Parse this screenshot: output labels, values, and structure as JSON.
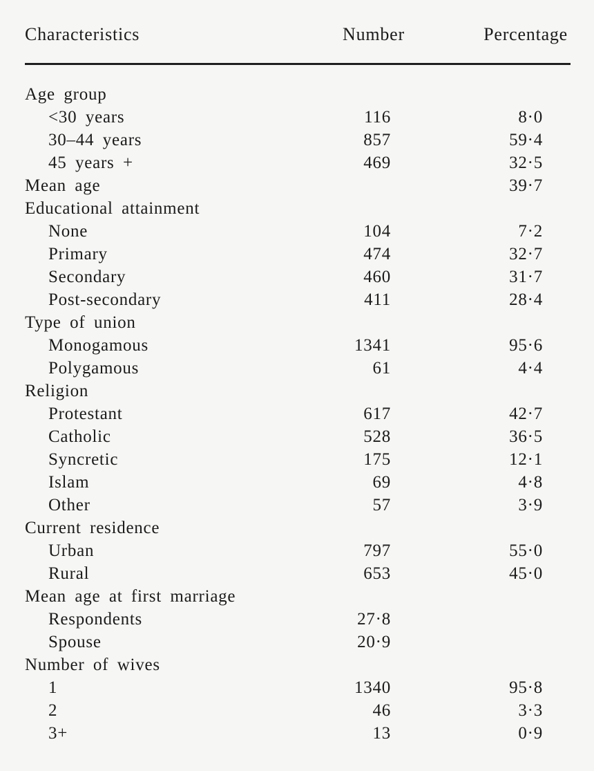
{
  "table": {
    "columns": {
      "characteristics": "Characteristics",
      "number": "Number",
      "percentage": "Percentage"
    },
    "rows": [
      {
        "label": "Age group",
        "indent": 0,
        "number": "",
        "percentage": ""
      },
      {
        "label": "<30 years",
        "indent": 1,
        "number": "116",
        "percentage": "8·0"
      },
      {
        "label": "30–44 years",
        "indent": 1,
        "number": "857",
        "percentage": "59·4"
      },
      {
        "label": "45 years +",
        "indent": 1,
        "number": "469",
        "percentage": "32·5"
      },
      {
        "label": "Mean age",
        "indent": 0,
        "number": "",
        "percentage": "39·7"
      },
      {
        "label": "Educational attainment",
        "indent": 0,
        "number": "",
        "percentage": ""
      },
      {
        "label": "None",
        "indent": 1,
        "number": "104",
        "percentage": "7·2"
      },
      {
        "label": "Primary",
        "indent": 1,
        "number": "474",
        "percentage": "32·7"
      },
      {
        "label": "Secondary",
        "indent": 1,
        "number": "460",
        "percentage": "31·7"
      },
      {
        "label": "Post-secondary",
        "indent": 1,
        "number": "411",
        "percentage": "28·4"
      },
      {
        "label": "Type of union",
        "indent": 0,
        "number": "",
        "percentage": ""
      },
      {
        "label": "Monogamous",
        "indent": 1,
        "number": "1341",
        "percentage": "95·6"
      },
      {
        "label": "Polygamous",
        "indent": 1,
        "number": "61",
        "percentage": "4·4"
      },
      {
        "label": "Religion",
        "indent": 0,
        "number": "",
        "percentage": ""
      },
      {
        "label": "Protestant",
        "indent": 1,
        "number": "617",
        "percentage": "42·7"
      },
      {
        "label": "Catholic",
        "indent": 1,
        "number": "528",
        "percentage": "36·5"
      },
      {
        "label": "Syncretic",
        "indent": 1,
        "number": "175",
        "percentage": "12·1"
      },
      {
        "label": "Islam",
        "indent": 1,
        "number": "69",
        "percentage": "4·8"
      },
      {
        "label": "Other",
        "indent": 1,
        "number": "57",
        "percentage": "3·9"
      },
      {
        "label": "Current residence",
        "indent": 0,
        "number": "",
        "percentage": ""
      },
      {
        "label": "Urban",
        "indent": 1,
        "number": "797",
        "percentage": "55·0"
      },
      {
        "label": "Rural",
        "indent": 1,
        "number": "653",
        "percentage": "45·0"
      },
      {
        "label": "Mean age at first marriage",
        "indent": 0,
        "number": "",
        "percentage": ""
      },
      {
        "label": "Respondents",
        "indent": 1,
        "number": "27·8",
        "percentage": ""
      },
      {
        "label": "Spouse",
        "indent": 1,
        "number": "20·9",
        "percentage": ""
      },
      {
        "label": "Number of wives",
        "indent": 0,
        "number": "",
        "percentage": ""
      },
      {
        "label": "1",
        "indent": 1,
        "number": "1340",
        "percentage": "95·8"
      },
      {
        "label": "2",
        "indent": 1,
        "number": "46",
        "percentage": "3·3"
      },
      {
        "label": "3+",
        "indent": 1,
        "number": "13",
        "percentage": "0·9"
      }
    ],
    "colors": {
      "background": "#f6f6f4",
      "text": "#1b1b1b",
      "rule": "#1f1f1f"
    }
  }
}
